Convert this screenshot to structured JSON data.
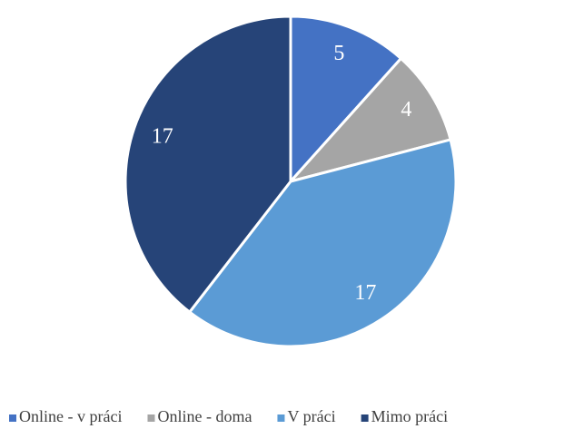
{
  "chart_data": {
    "type": "pie",
    "categories": [
      "Online - v práci",
      "Online - doma",
      "V práci",
      "Mimo práci"
    ],
    "values": [
      5,
      4,
      17,
      17
    ],
    "colors": [
      "#4472c4",
      "#a5a5a5",
      "#5b9bd5",
      "#264478"
    ],
    "legend": "bottom"
  }
}
